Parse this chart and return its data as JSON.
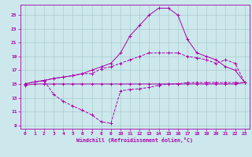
{
  "xlabel": "Windchill (Refroidissement éolien,°C)",
  "background_color": "#cce8ec",
  "grid_color": "#aacccc",
  "line_color": "#aa00aa",
  "xlim": [
    -0.5,
    23.5
  ],
  "ylim": [
    8.5,
    26.5
  ],
  "xticks": [
    0,
    1,
    2,
    3,
    4,
    5,
    6,
    7,
    8,
    9,
    10,
    11,
    12,
    13,
    14,
    15,
    16,
    17,
    18,
    19,
    20,
    21,
    22,
    23
  ],
  "yticks": [
    9,
    11,
    13,
    15,
    17,
    19,
    21,
    23,
    25
  ],
  "curve_flat_x": [
    0,
    1,
    2,
    3,
    4,
    5,
    6,
    7,
    8,
    9,
    10,
    11,
    12,
    13,
    14,
    15,
    16,
    17,
    18,
    19,
    20,
    21,
    22,
    23
  ],
  "curve_flat_y": [
    14.8,
    15.0,
    15.0,
    15.0,
    15.0,
    15.0,
    15.0,
    15.0,
    15.0,
    15.0,
    15.0,
    15.0,
    15.0,
    15.0,
    15.0,
    15.0,
    15.0,
    15.0,
    15.0,
    15.0,
    15.0,
    15.0,
    15.0,
    15.2
  ],
  "curve_high_x": [
    0,
    1,
    2,
    3,
    4,
    5,
    6,
    7,
    8,
    9,
    10,
    11,
    12,
    13,
    14,
    15,
    16,
    17,
    18,
    19,
    20,
    21,
    22,
    23
  ],
  "curve_high_y": [
    15.0,
    15.3,
    15.5,
    15.8,
    16.0,
    16.2,
    16.5,
    16.5,
    17.2,
    17.5,
    18.0,
    18.5,
    19.0,
    19.5,
    19.5,
    19.5,
    19.5,
    19.0,
    18.8,
    18.5,
    18.0,
    18.5,
    18.0,
    15.2
  ],
  "curve_peak_x": [
    0,
    1,
    2,
    3,
    4,
    5,
    6,
    7,
    8,
    9,
    10,
    11,
    12,
    13,
    14,
    15,
    16,
    17,
    18,
    19,
    20,
    21,
    22,
    23
  ],
  "curve_peak_y": [
    15.0,
    15.3,
    15.5,
    15.8,
    16.0,
    16.2,
    16.5,
    17.0,
    17.5,
    18.0,
    19.5,
    22.0,
    23.5,
    25.0,
    26.0,
    26.0,
    25.0,
    21.5,
    19.5,
    19.0,
    18.5,
    17.5,
    17.0,
    15.2
  ],
  "curve_dip_x": [
    0,
    1,
    2,
    3,
    4,
    5,
    6,
    7,
    8,
    9,
    10,
    11,
    12,
    13,
    14,
    15,
    16,
    17,
    18,
    19,
    20,
    21,
    22,
    23
  ],
  "curve_dip_y": [
    15.0,
    15.3,
    15.5,
    13.5,
    12.5,
    11.8,
    11.2,
    10.5,
    9.5,
    9.3,
    14.0,
    14.2,
    14.3,
    14.5,
    14.8,
    15.0,
    15.0,
    15.2,
    15.2,
    15.2,
    15.2,
    15.2,
    15.2,
    15.2
  ]
}
